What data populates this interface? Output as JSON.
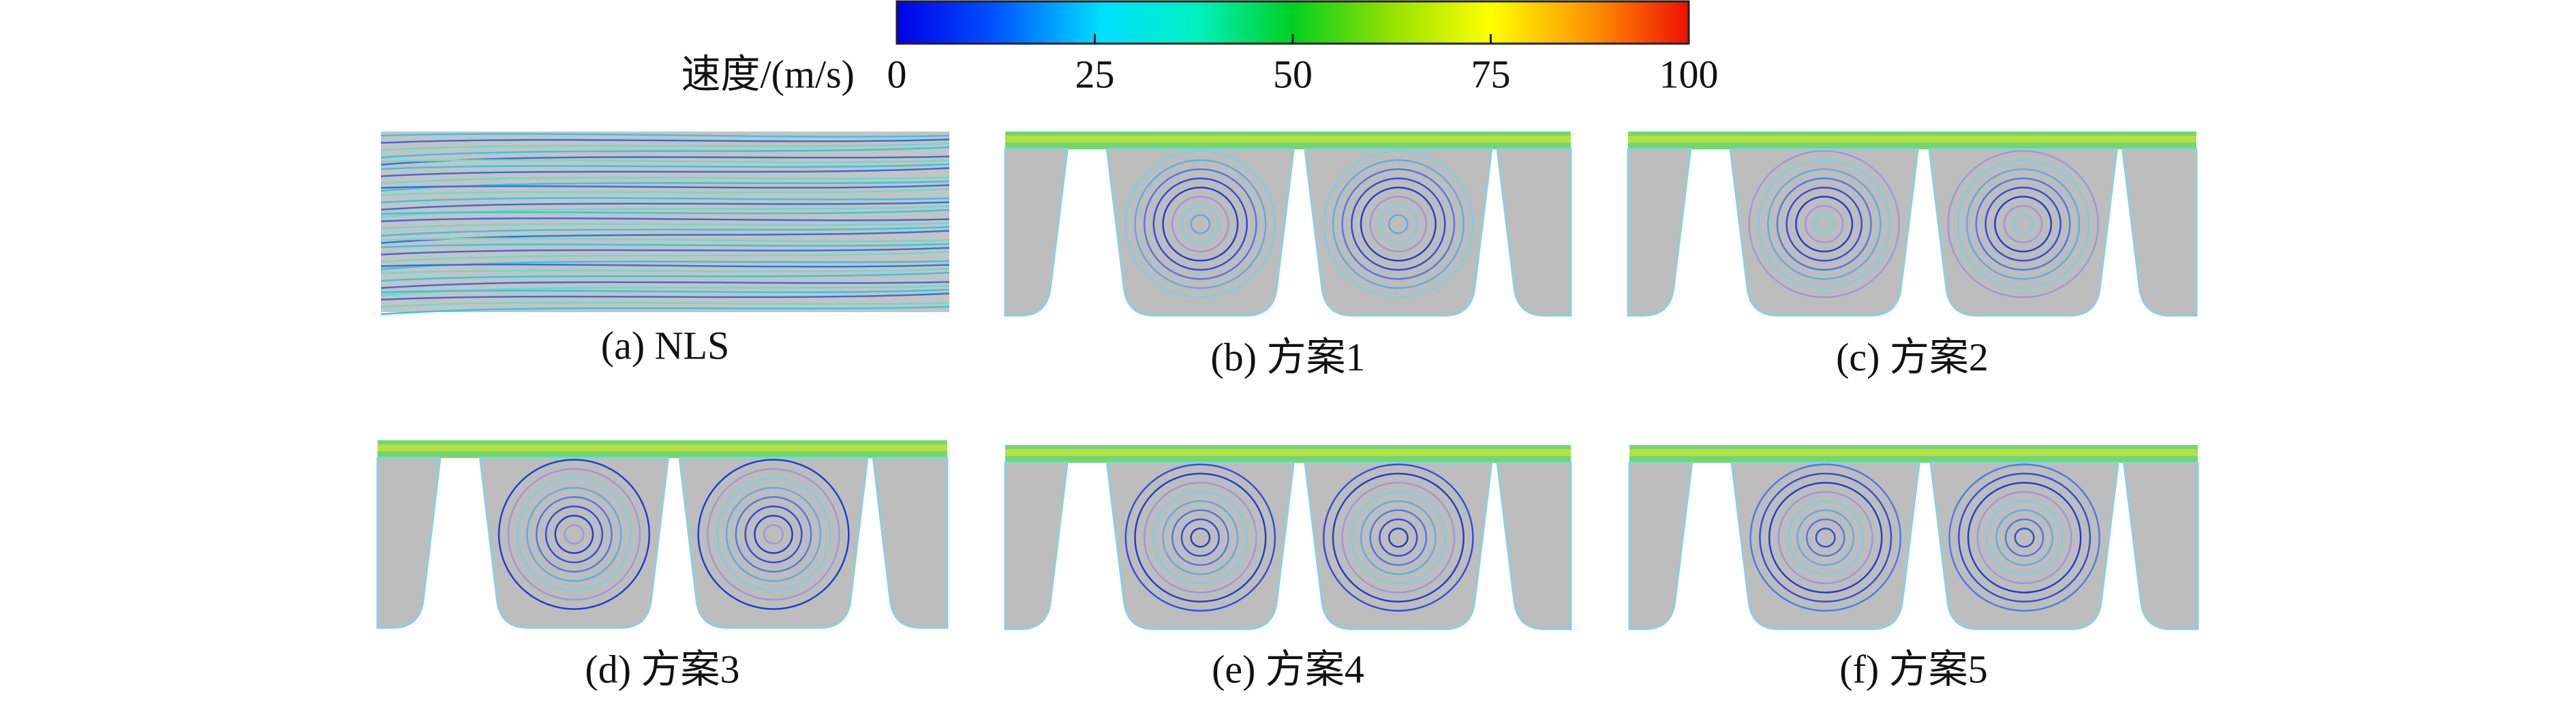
{
  "colorbar": {
    "label": "速度/(m/s)",
    "range": [
      0,
      100
    ],
    "ticks": [
      0,
      25,
      50,
      75,
      100
    ]
  },
  "panels": [
    {
      "caption": "(a) NLS"
    },
    {
      "caption": "(b) 方案1"
    },
    {
      "caption": "(c) 方案2"
    },
    {
      "caption": "(d) 方案3"
    },
    {
      "caption": "(e) 方案4"
    },
    {
      "caption": "(f) 方案5"
    }
  ]
}
